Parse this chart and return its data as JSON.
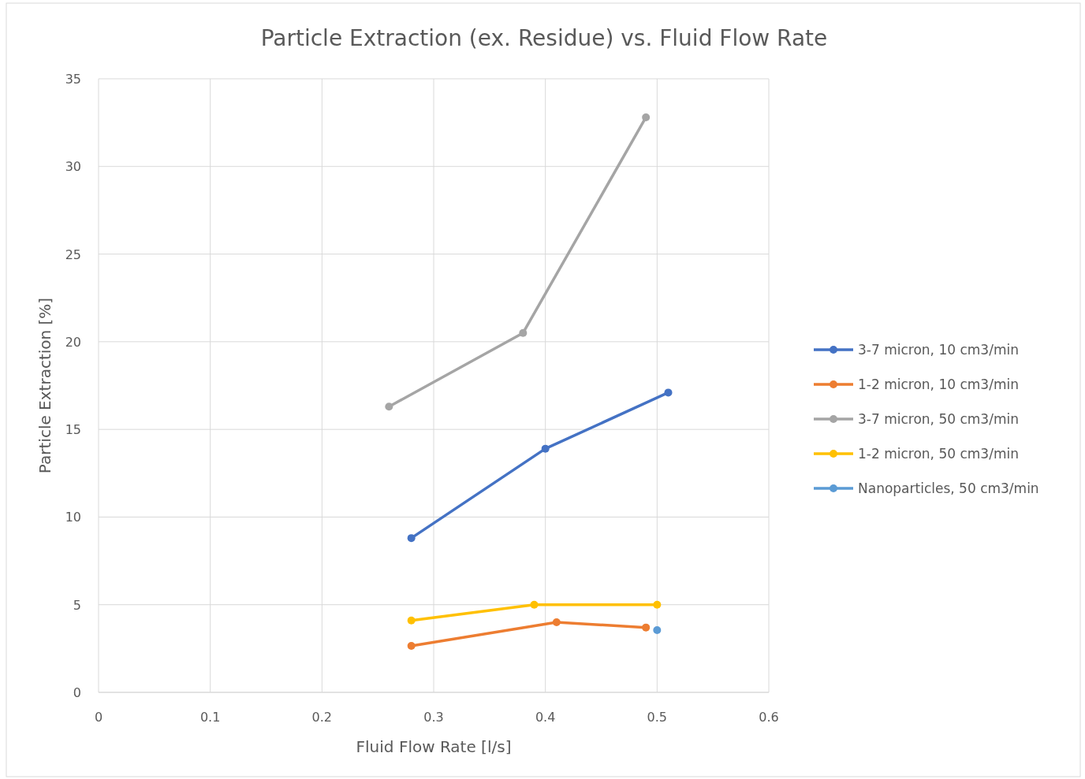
{
  "chart_data": {
    "type": "line",
    "title": "Particle Extraction (ex. Residue) vs. Fluid Flow Rate",
    "xlabel": "Fluid Flow Rate [l/s]",
    "ylabel": "Particle Extraction [%]",
    "xlim": [
      0,
      0.6
    ],
    "xticks": [
      0,
      0.1,
      0.2,
      0.3,
      0.4,
      0.5,
      0.6
    ],
    "ylim": [
      0,
      35
    ],
    "yticks": [
      0,
      5,
      10,
      15,
      20,
      25,
      30,
      35
    ],
    "grid": true,
    "legend": "right",
    "marker": "circle",
    "line_style": "solid",
    "series": [
      {
        "name": "3-7 micron, 10 cm3/min",
        "color": "#4472c4",
        "x": [
          0.28,
          0.4,
          0.51
        ],
        "values": [
          8.8,
          13.9,
          17.1
        ]
      },
      {
        "name": "1-2 micron, 10 cm3/min",
        "color": "#ed7d31",
        "x": [
          0.28,
          0.41,
          0.49
        ],
        "values": [
          2.65,
          4.0,
          3.7
        ]
      },
      {
        "name": "3-7 micron, 50 cm3/min",
        "color": "#a5a5a5",
        "x": [
          0.26,
          0.38,
          0.49
        ],
        "values": [
          16.3,
          20.5,
          32.8
        ]
      },
      {
        "name": "1-2 micron, 50 cm3/min",
        "color": "#ffc000",
        "x": [
          0.28,
          0.39,
          0.5
        ],
        "values": [
          4.1,
          5.0,
          5.0
        ]
      },
      {
        "name": "Nanoparticles, 50 cm3/min",
        "color": "#5b9bd5",
        "x": [
          0.5
        ],
        "values": [
          3.55
        ]
      }
    ]
  }
}
